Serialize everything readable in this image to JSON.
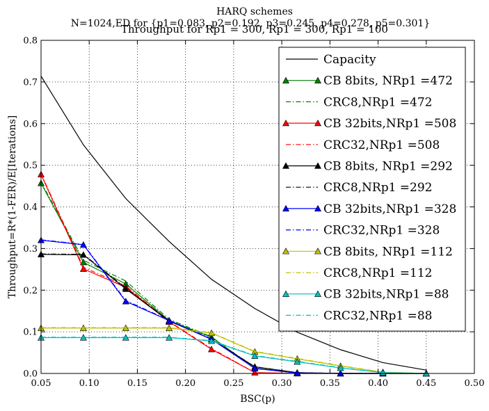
{
  "chart_data": {
    "type": "line",
    "title_lines": [
      "HARQ schemes",
      "N=1024,ED for {p1=0.083, p2=0.192, p3=0.245, p4=0.278, p5=0.301}",
      "Throughput for Rp1 = 300, Rp1 = 300, Rp1 = 100"
    ],
    "xlabel": "BSC(p)",
    "ylabel": "Throughput=R*(1-FER)/E[Iterations]",
    "xlim": [
      0.05,
      0.5
    ],
    "ylim": [
      0.0,
      0.8
    ],
    "xticks": [
      "0.05",
      "0.10",
      "0.15",
      "0.20",
      "0.25",
      "0.30",
      "0.35",
      "0.40",
      "0.45",
      "0.50"
    ],
    "yticks": [
      "0.0",
      "0.1",
      "0.2",
      "0.3",
      "0.4",
      "0.5",
      "0.6",
      "0.7",
      "0.8"
    ],
    "grid": true,
    "legend_position": "top-right",
    "series": [
      {
        "name": "Capacity",
        "style": "solid",
        "marker": "none",
        "color": "#000000",
        "x": [
          0.05,
          0.094,
          0.138,
          0.183,
          0.227,
          0.272,
          0.316,
          0.361,
          0.405,
          0.45
        ],
        "y": [
          0.714,
          0.549,
          0.42,
          0.317,
          0.226,
          0.156,
          0.099,
          0.057,
          0.026,
          0.008
        ]
      },
      {
        "name": "CB 8bits, NRp1 =472",
        "style": "solid",
        "marker": "triangle",
        "color": "#008000",
        "x": [
          0.05,
          0.094,
          0.138,
          0.183,
          0.227,
          0.272,
          0.316,
          0.361,
          0.405,
          0.45
        ],
        "y": [
          0.457,
          0.267,
          0.215,
          0.127,
          0.087,
          0.013,
          0.001,
          0.0,
          0.0,
          0.0
        ]
      },
      {
        "name": "CRC8,NRp1 =472",
        "style": "dashdot",
        "marker": "none",
        "color": "#008000",
        "x": [
          0.05,
          0.094,
          0.138,
          0.183,
          0.227,
          0.272,
          0.316,
          0.361,
          0.405,
          0.45
        ],
        "y": [
          0.46,
          0.272,
          0.222,
          0.13,
          0.088,
          0.012,
          0.001,
          0.0,
          0.0,
          0.0
        ]
      },
      {
        "name": "CB 32bits,NRp1 =508",
        "style": "solid",
        "marker": "triangle",
        "color": "#ff0000",
        "x": [
          0.05,
          0.094,
          0.138,
          0.183,
          0.227,
          0.272,
          0.316,
          0.361,
          0.405,
          0.45
        ],
        "y": [
          0.478,
          0.251,
          0.207,
          0.124,
          0.058,
          0.002,
          0.0,
          0.0,
          0.0,
          0.0
        ]
      },
      {
        "name": "CRC32,NRp1 =508",
        "style": "dashdot",
        "marker": "none",
        "color": "#ff0000",
        "x": [
          0.05,
          0.094,
          0.138,
          0.183,
          0.227,
          0.272,
          0.316,
          0.361,
          0.405,
          0.45
        ],
        "y": [
          0.48,
          0.255,
          0.21,
          0.125,
          0.06,
          0.002,
          0.0,
          0.0,
          0.0,
          0.0
        ]
      },
      {
        "name": "CB 8bits, NRp1 =292",
        "style": "solid",
        "marker": "triangle",
        "color": "#000000",
        "x": [
          0.05,
          0.094,
          0.138,
          0.183,
          0.227,
          0.272,
          0.316,
          0.361,
          0.405,
          0.45
        ],
        "y": [
          0.286,
          0.285,
          0.203,
          0.126,
          0.082,
          0.016,
          0.002,
          0.0,
          0.0,
          0.0
        ]
      },
      {
        "name": "CRC8,NRp1 =292",
        "style": "dashdot",
        "marker": "none",
        "color": "#000000",
        "x": [
          0.05,
          0.094,
          0.138,
          0.183,
          0.227,
          0.272,
          0.316,
          0.361,
          0.405,
          0.45
        ],
        "y": [
          0.287,
          0.286,
          0.205,
          0.127,
          0.083,
          0.016,
          0.002,
          0.0,
          0.0,
          0.0
        ]
      },
      {
        "name": "CB 32bits,NRp1 =328",
        "style": "solid",
        "marker": "triangle",
        "color": "#0000ff",
        "x": [
          0.05,
          0.094,
          0.138,
          0.183,
          0.227,
          0.272,
          0.316,
          0.361,
          0.405,
          0.45
        ],
        "y": [
          0.32,
          0.309,
          0.173,
          0.127,
          0.082,
          0.012,
          0.001,
          0.0,
          0.0,
          0.0
        ]
      },
      {
        "name": "CRC32,NRp1 =328",
        "style": "dashdot",
        "marker": "none",
        "color": "#0000ff",
        "x": [
          0.05,
          0.094,
          0.138,
          0.183,
          0.227,
          0.272,
          0.316,
          0.361,
          0.405,
          0.45
        ],
        "y": [
          0.321,
          0.31,
          0.175,
          0.128,
          0.083,
          0.012,
          0.001,
          0.0,
          0.0,
          0.0
        ]
      },
      {
        "name": "CB 8bits, NRp1 =112",
        "style": "solid",
        "marker": "triangle",
        "color": "#bfbf00",
        "x": [
          0.05,
          0.094,
          0.138,
          0.183,
          0.227,
          0.272,
          0.316,
          0.361,
          0.405,
          0.45
        ],
        "y": [
          0.109,
          0.109,
          0.109,
          0.109,
          0.097,
          0.052,
          0.035,
          0.018,
          0.003,
          0.0
        ]
      },
      {
        "name": "CRC8,NRp1 =112",
        "style": "dashdot",
        "marker": "none",
        "color": "#bfbf00",
        "x": [
          0.05,
          0.094,
          0.138,
          0.183,
          0.227,
          0.272,
          0.316,
          0.361,
          0.405,
          0.45
        ],
        "y": [
          0.11,
          0.11,
          0.11,
          0.11,
          0.098,
          0.053,
          0.036,
          0.019,
          0.003,
          0.0
        ]
      },
      {
        "name": "CB 32bits,NRp1 =88",
        "style": "solid",
        "marker": "triangle",
        "color": "#00bfbf",
        "x": [
          0.05,
          0.094,
          0.138,
          0.183,
          0.227,
          0.272,
          0.316,
          0.361,
          0.405,
          0.45
        ],
        "y": [
          0.086,
          0.086,
          0.086,
          0.086,
          0.078,
          0.042,
          0.028,
          0.013,
          0.002,
          0.0
        ]
      },
      {
        "name": "CRC32,NRp1 =88",
        "style": "dashdot",
        "marker": "none",
        "color": "#00bfbf",
        "x": [
          0.05,
          0.094,
          0.138,
          0.183,
          0.227,
          0.272,
          0.316,
          0.361,
          0.405,
          0.45
        ],
        "y": [
          0.087,
          0.087,
          0.087,
          0.087,
          0.079,
          0.043,
          0.029,
          0.014,
          0.002,
          0.0
        ]
      }
    ]
  }
}
